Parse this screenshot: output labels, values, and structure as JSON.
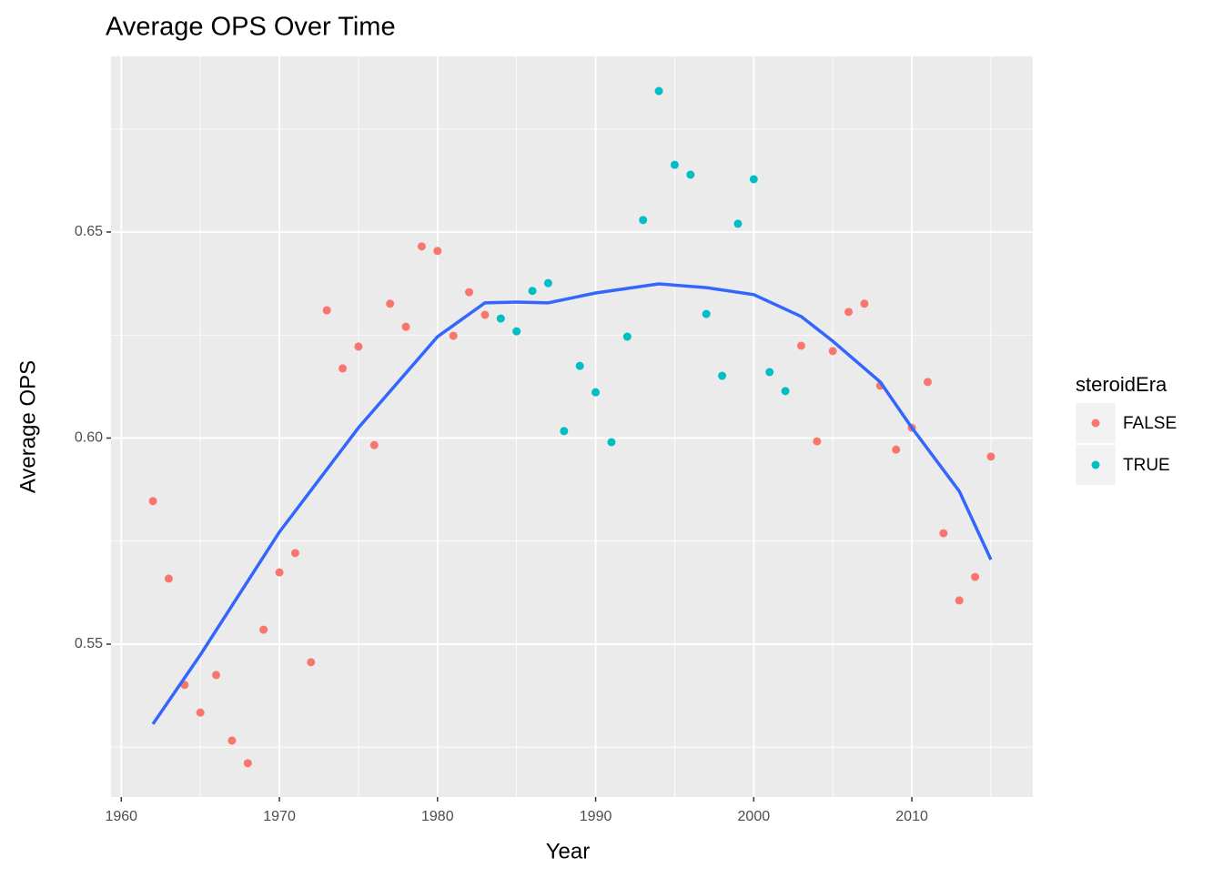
{
  "chart_data": {
    "type": "scatter",
    "title": "Average OPS Over Time",
    "x_label": "Year",
    "y_label": "Average OPS",
    "legend_title": "steroidEra",
    "legend_position": "right",
    "grid": true,
    "xlim": [
      1959.35,
      2017.65
    ],
    "xticks": [
      1960,
      1970,
      1980,
      1990,
      2000,
      2010
    ],
    "ylim": [
      0.5129,
      0.6926
    ],
    "yticks": [
      0.55,
      {
        "value": 0.6,
        "label": "0.60"
      },
      0.65
    ],
    "series": [
      {
        "name": "FALSE",
        "color": "#F8766D",
        "x": [
          1962,
          1963,
          1964,
          1965,
          1966,
          1967,
          1968,
          1969,
          1970,
          1971,
          1972,
          1973,
          1974,
          1975,
          1976,
          1977,
          1978,
          1979,
          1980,
          1981,
          1982,
          1983,
          2003,
          2004,
          2005,
          2006,
          2007,
          2008,
          2009,
          2010,
          2011,
          2012,
          2013,
          2014,
          2015
        ],
        "values": [
          0.5847,
          0.5659,
          0.5401,
          0.5334,
          0.5425,
          0.5266,
          0.5211,
          0.5535,
          0.5674,
          0.5721,
          0.5456,
          0.631,
          0.6169,
          0.6222,
          0.5983,
          0.6326,
          0.627,
          0.6465,
          0.6454,
          0.6248,
          0.6354,
          0.6299,
          0.6224,
          0.5992,
          0.6211,
          0.6306,
          0.6326,
          0.6127,
          0.5972,
          0.6025,
          0.6136,
          0.5769,
          0.5606,
          0.5663,
          0.5955
        ]
      },
      {
        "name": "TRUE",
        "color": "#00BFC4",
        "x": [
          1984,
          1985,
          1986,
          1987,
          1988,
          1989,
          1990,
          1991,
          1992,
          1993,
          1994,
          1995,
          1996,
          1997,
          1998,
          1999,
          2000,
          2001,
          2002
        ],
        "values": [
          0.629,
          0.6259,
          0.6357,
          0.6376,
          0.6017,
          0.6175,
          0.6111,
          0.599,
          0.6246,
          0.6529,
          0.6842,
          0.6663,
          0.6639,
          0.6301,
          0.6151,
          0.652,
          0.6628,
          0.616,
          0.6114
        ]
      }
    ],
    "smooth": {
      "color": "#3366FF",
      "x": [
        1962,
        1965,
        1970,
        1975,
        1980,
        1983,
        1985,
        1987,
        1990,
        1994,
        1997,
        2000,
        2003,
        2005,
        2008,
        2010,
        2013,
        2015
      ],
      "values": [
        0.5306,
        0.5474,
        0.5772,
        0.6025,
        0.6246,
        0.6328,
        0.633,
        0.6328,
        0.6352,
        0.6374,
        0.6365,
        0.6348,
        0.6295,
        0.6235,
        0.6136,
        0.6025,
        0.5871,
        0.5705
      ]
    }
  }
}
